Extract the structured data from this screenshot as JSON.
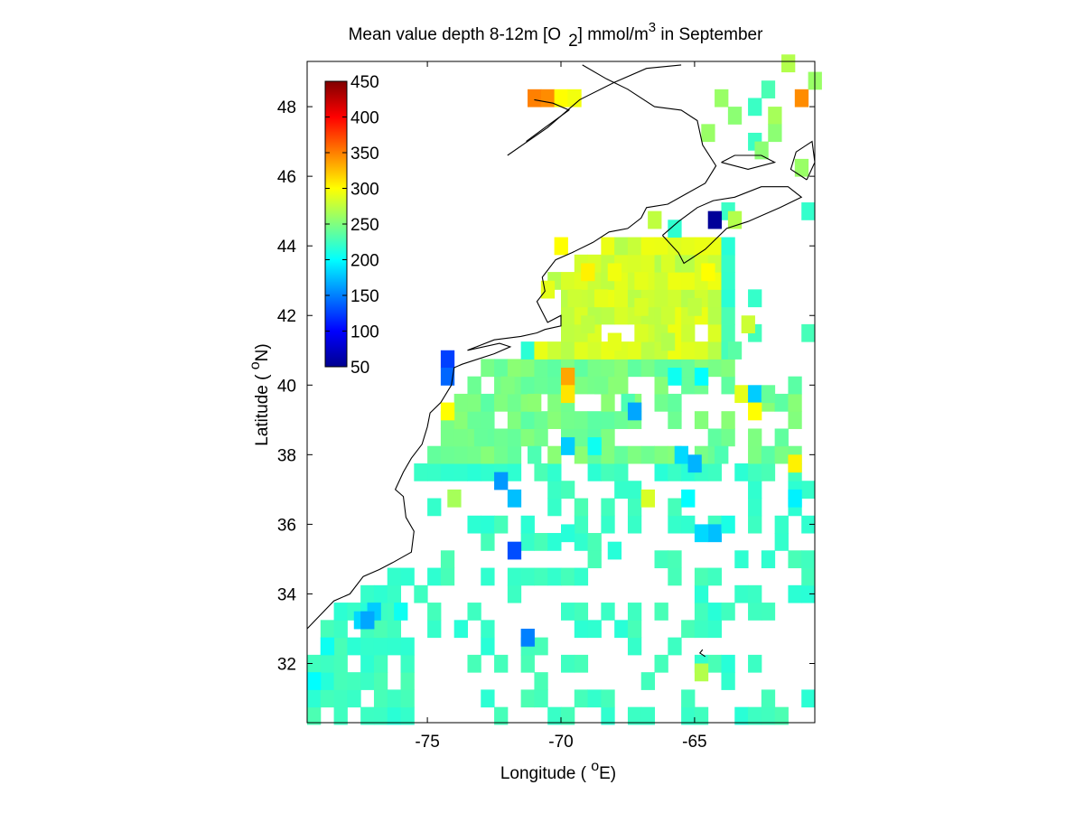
{
  "figure": {
    "title": {
      "prefix": "Mean value depth 8-12m [O",
      "sub": "2",
      "mid": "] mmol/m",
      "sup": "3",
      "suffix": " in September"
    },
    "xlabel": {
      "prefix": "Longitude ( ",
      "sup": "o",
      "suffix": "E)"
    },
    "ylabel": {
      "prefix": "Latitude ( ",
      "sup": "o",
      "suffix": "N)"
    }
  },
  "chart_data": {
    "type": "heatmap",
    "description_units": "mmol/m3",
    "x_axis": {
      "range": [
        -79.5,
        -60.5
      ],
      "ticks": [
        -75,
        -70,
        -65
      ],
      "tick_labels": [
        "-75",
        "-70",
        "-65"
      ]
    },
    "y_axis": {
      "range": [
        30.3,
        49.3
      ],
      "ticks": [
        32,
        34,
        36,
        38,
        40,
        42,
        44,
        46,
        48
      ],
      "tick_labels": [
        "32",
        "34",
        "36",
        "38",
        "40",
        "42",
        "44",
        "46",
        "48"
      ]
    },
    "cell_size_deg": 0.5,
    "colorbar": {
      "colormap": "jet",
      "range": [
        50,
        450
      ],
      "ticks": [
        50,
        100,
        150,
        200,
        250,
        300,
        350,
        400,
        450
      ],
      "tick_labels": [
        "50",
        "100",
        "150",
        "200",
        "250",
        "300",
        "350",
        "400",
        "450"
      ],
      "placement": "top-left inside plot"
    },
    "cells": [
      {
        "lon": -71.0,
        "lat": 48.25,
        "value": 350
      },
      {
        "lon": -70.5,
        "lat": 48.25,
        "value": 345
      },
      {
        "lon": -70.0,
        "lat": 48.25,
        "value": 300
      },
      {
        "lon": -69.5,
        "lat": 48.25,
        "value": 295
      },
      {
        "lon": -61.0,
        "lat": 48.25,
        "value": 345
      },
      {
        "lon": -61.5,
        "lat": 49.25,
        "value": 270
      },
      {
        "lon": -60.5,
        "lat": 48.75,
        "value": 260
      },
      {
        "lon": -64.0,
        "lat": 48.25,
        "value": 260
      },
      {
        "lon": -62.0,
        "lat": 47.75,
        "value": 265
      },
      {
        "lon": -63.5,
        "lat": 47.75,
        "value": 255
      },
      {
        "lon": -64.5,
        "lat": 47.25,
        "value": 260
      },
      {
        "lon": -62.0,
        "lat": 47.25,
        "value": 255
      },
      {
        "lon": -62.5,
        "lat": 46.75,
        "value": 255
      },
      {
        "lon": -61.0,
        "lat": 46.25,
        "value": 260
      },
      {
        "lon": -64.25,
        "lat": 44.75,
        "value": 60
      },
      {
        "lon": -66.5,
        "lat": 44.75,
        "value": 275
      },
      {
        "lon": -63.5,
        "lat": 44.75,
        "value": 270
      },
      {
        "lon": -70.0,
        "lat": 44.0,
        "value": 300
      },
      {
        "lon": -69.0,
        "lat": 43.25,
        "value": 305
      },
      {
        "lon": -68.0,
        "lat": 43.25,
        "value": 295
      },
      {
        "lon": -67.0,
        "lat": 43.0,
        "value": 290
      },
      {
        "lon": -66.0,
        "lat": 43.5,
        "value": 285
      },
      {
        "lon": -64.5,
        "lat": 43.25,
        "value": 300
      },
      {
        "lon": -70.5,
        "lat": 42.75,
        "value": 290
      },
      {
        "lon": -69.5,
        "lat": 42.5,
        "value": 280
      },
      {
        "lon": -68.5,
        "lat": 42.5,
        "value": 290
      },
      {
        "lon": -67.0,
        "lat": 42.25,
        "value": 285
      },
      {
        "lon": -66.0,
        "lat": 42.0,
        "value": 280
      },
      {
        "lon": -65.0,
        "lat": 42.25,
        "value": 275
      },
      {
        "lon": -69.0,
        "lat": 41.75,
        "value": 275
      },
      {
        "lon": -68.0,
        "lat": 41.25,
        "value": 290
      },
      {
        "lon": -67.0,
        "lat": 41.5,
        "value": 285
      },
      {
        "lon": -66.0,
        "lat": 41.25,
        "value": 270
      },
      {
        "lon": -63.0,
        "lat": 41.75,
        "value": 280
      },
      {
        "lon": -63.5,
        "lat": 41.0,
        "value": 235
      },
      {
        "lon": -74.25,
        "lat": 40.75,
        "value": 125
      },
      {
        "lon": -74.25,
        "lat": 40.25,
        "value": 140
      },
      {
        "lon": -69.75,
        "lat": 40.25,
        "value": 335
      },
      {
        "lon": -69.75,
        "lat": 39.75,
        "value": 310
      },
      {
        "lon": -72.0,
        "lat": 40.0,
        "value": 250
      },
      {
        "lon": -71.0,
        "lat": 39.5,
        "value": 255
      },
      {
        "lon": -68.5,
        "lat": 40.0,
        "value": 245
      },
      {
        "lon": -67.5,
        "lat": 39.5,
        "value": 230
      },
      {
        "lon": -67.25,
        "lat": 39.25,
        "value": 165
      },
      {
        "lon": -65.75,
        "lat": 40.25,
        "value": 205
      },
      {
        "lon": -64.75,
        "lat": 40.25,
        "value": 200
      },
      {
        "lon": -63.25,
        "lat": 39.75,
        "value": 290
      },
      {
        "lon": -62.75,
        "lat": 39.75,
        "value": 180
      },
      {
        "lon": -62.25,
        "lat": 39.75,
        "value": 240
      },
      {
        "lon": -62.75,
        "lat": 39.25,
        "value": 300
      },
      {
        "lon": -74.25,
        "lat": 39.25,
        "value": 300
      },
      {
        "lon": -73.0,
        "lat": 38.5,
        "value": 240
      },
      {
        "lon": -71.0,
        "lat": 38.0,
        "value": 230
      },
      {
        "lon": -69.75,
        "lat": 38.25,
        "value": 180
      },
      {
        "lon": -68.75,
        "lat": 38.25,
        "value": 205
      },
      {
        "lon": -65.5,
        "lat": 38.0,
        "value": 185
      },
      {
        "lon": -65.0,
        "lat": 37.75,
        "value": 170
      },
      {
        "lon": -64.0,
        "lat": 38.0,
        "value": 230
      },
      {
        "lon": -61.25,
        "lat": 37.75,
        "value": 305
      },
      {
        "lon": -72.25,
        "lat": 37.25,
        "value": 160
      },
      {
        "lon": -71.75,
        "lat": 36.75,
        "value": 175
      },
      {
        "lon": -74.0,
        "lat": 36.75,
        "value": 265
      },
      {
        "lon": -66.75,
        "lat": 36.75,
        "value": 285
      },
      {
        "lon": -65.25,
        "lat": 36.75,
        "value": 200
      },
      {
        "lon": -61.25,
        "lat": 36.75,
        "value": 195
      },
      {
        "lon": -71.75,
        "lat": 35.25,
        "value": 130
      },
      {
        "lon": -64.25,
        "lat": 35.75,
        "value": 175
      },
      {
        "lon": -64.75,
        "lat": 35.75,
        "value": 185
      },
      {
        "lon": -63.75,
        "lat": 36.0,
        "value": 210
      },
      {
        "lon": -69.75,
        "lat": 35.75,
        "value": 215
      },
      {
        "lon": -68.0,
        "lat": 35.25,
        "value": 215
      },
      {
        "lon": -77.5,
        "lat": 33.25,
        "value": 185
      },
      {
        "lon": -77.0,
        "lat": 33.5,
        "value": 180
      },
      {
        "lon": -77.25,
        "lat": 33.25,
        "value": 165
      },
      {
        "lon": -76.0,
        "lat": 33.5,
        "value": 205
      },
      {
        "lon": -78.75,
        "lat": 32.5,
        "value": 205
      },
      {
        "lon": -71.25,
        "lat": 32.75,
        "value": 150
      },
      {
        "lon": -64.75,
        "lat": 31.75,
        "value": 270
      },
      {
        "lon": -79.25,
        "lat": 31.5,
        "value": 200
      }
    ]
  }
}
